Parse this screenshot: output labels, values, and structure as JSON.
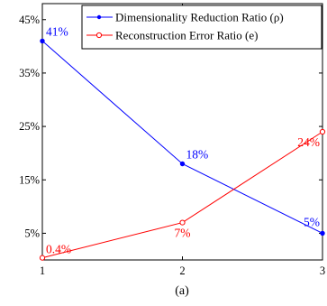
{
  "chart_data": {
    "type": "line",
    "x": [
      1,
      2,
      3
    ],
    "xlim": [
      1,
      3
    ],
    "ylim": [
      0,
      48
    ],
    "x_ticks": [
      "1",
      "2",
      "3"
    ],
    "y_ticks": [
      {
        "value": 5,
        "label": "5%"
      },
      {
        "value": 15,
        "label": "15%"
      },
      {
        "value": 25,
        "label": "25%"
      },
      {
        "value": 35,
        "label": "35%"
      },
      {
        "value": 45,
        "label": "45%"
      }
    ],
    "grid": false,
    "legend_position": "top-right",
    "series": [
      {
        "name": "Dimensionality Reduction Ratio (ρ)",
        "color": "#0000ff",
        "marker": "filled-dot",
        "values": [
          41,
          18,
          5
        ],
        "labels": [
          "41%",
          "18%",
          "5%"
        ]
      },
      {
        "name": "Reconstruction Error Ratio (e)",
        "color": "#ff0000",
        "marker": "open-circle",
        "values": [
          0.4,
          7,
          24
        ],
        "labels": [
          "0.4%",
          "7%",
          "24%"
        ]
      }
    ],
    "caption": "(a)"
  }
}
